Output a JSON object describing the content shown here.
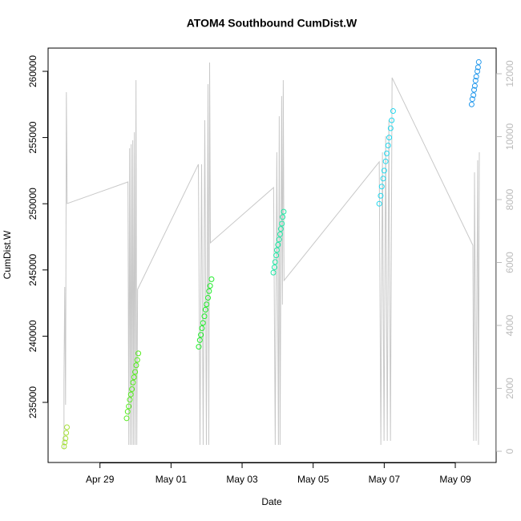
{
  "chart_data": {
    "type": "scatter",
    "title": "ATOM4 Southbound CumDist.W",
    "xlabel": "Date",
    "ylabel": "CumDist.W",
    "xlim": [
      0.54,
      13.15
    ],
    "xticks": [
      {
        "value": 2,
        "label": "Apr 29"
      },
      {
        "value": 4,
        "label": "May 01"
      },
      {
        "value": 6,
        "label": "May 03"
      },
      {
        "value": 8,
        "label": "May 05"
      },
      {
        "value": 10,
        "label": "May 07"
      },
      {
        "value": 12,
        "label": "May 09"
      }
    ],
    "ylim": [
      230460,
      261755
    ],
    "yticks": [
      235000,
      240000,
      245000,
      250000,
      255000,
      260000
    ],
    "y2lim": [
      -357,
      12815
    ],
    "y2ticks": [
      0,
      2000,
      4000,
      6000,
      8000,
      10000,
      12000
    ],
    "series": [
      {
        "type": "line",
        "axis": "y2",
        "color": "#c8c8c8",
        "x": [
          0.987,
          0.987,
          1.009,
          1.032,
          1.054,
          1.077,
          2.788,
          2.811,
          2.833,
          2.856,
          2.878,
          2.901,
          2.923,
          2.946,
          2.968,
          2.991,
          3.014,
          3.036,
          3.059,
          4.77,
          4.815,
          4.86,
          4.905,
          4.95,
          4.995,
          5.041,
          5.063,
          5.086,
          5.108,
          6.887,
          6.932,
          6.977,
          7.023,
          7.045,
          7.068,
          7.113,
          7.135,
          7.158,
          7.18,
          9.86,
          9.905,
          9.95,
          9.995,
          10.041,
          10.086,
          10.131,
          10.176,
          10.221,
          12.495,
          12.518,
          12.541,
          12.586,
          12.631,
          12.653,
          12.676
        ],
        "values": [
          76,
          2242,
          5223,
          1478,
          11415,
          7873,
          8561,
          204,
          9631,
          204,
          9758,
          204,
          9886,
          204,
          10141,
          204,
          11797,
          204,
          5147,
          9122,
          204,
          9122,
          204,
          10523,
          204,
          11670,
          204,
          12357,
          6625,
          8383,
          204,
          9504,
          204,
          10651,
          204,
          11288,
          4663,
          11797,
          5427,
          9198,
          204,
          9504,
          331,
          10014,
          331,
          10523,
          331,
          11874,
          6548,
          331,
          8867,
          331,
          9250,
          204,
          9504
        ]
      },
      {
        "type": "scatter",
        "color": "#a6e03a",
        "x": [
          0.99,
          1.01,
          1.03,
          1.05,
          1.07
        ],
        "values": [
          231672,
          231975,
          232277,
          232700,
          233124
        ]
      },
      {
        "type": "scatter",
        "color": "#55ec1e",
        "x": [
          2.75,
          2.78,
          2.81,
          2.84,
          2.87,
          2.9,
          2.93,
          2.96,
          2.99,
          3.02,
          3.05,
          3.08
        ],
        "values": [
          233800,
          234300,
          234700,
          235200,
          235600,
          236000,
          236500,
          236900,
          237300,
          237800,
          238200,
          238700
        ]
      },
      {
        "type": "scatter",
        "color": "#22ec2c",
        "x": [
          4.78,
          4.81,
          4.84,
          4.87,
          4.9,
          4.94,
          4.97,
          5.0,
          5.04,
          5.07,
          5.1,
          5.14
        ],
        "values": [
          239200,
          239700,
          240100,
          240600,
          241000,
          241500,
          242000,
          242400,
          242900,
          243400,
          243800,
          244300
        ]
      },
      {
        "type": "scatter",
        "color": "#22e8a6",
        "x": [
          6.88,
          6.91,
          6.93,
          6.96,
          6.98,
          7.01,
          7.04,
          7.07,
          7.09,
          7.12,
          7.14,
          7.17
        ],
        "values": [
          244800,
          245200,
          245600,
          246100,
          246500,
          246900,
          247300,
          247700,
          248100,
          248500,
          249000,
          249400
        ]
      },
      {
        "type": "scatter",
        "color": "#22d8ee",
        "x": [
          9.86,
          9.9,
          9.93,
          9.97,
          10.0,
          10.04,
          10.07,
          10.11,
          10.14,
          10.18,
          10.21,
          10.25
        ],
        "values": [
          250000,
          250600,
          251300,
          251900,
          252500,
          253200,
          253800,
          254400,
          255000,
          255700,
          256300,
          257000
        ]
      },
      {
        "type": "scatter",
        "color": "#2298ec",
        "x": [
          12.46,
          12.48,
          12.51,
          12.53,
          12.55,
          12.57,
          12.59,
          12.62,
          12.64,
          12.66
        ],
        "values": [
          257500,
          257900,
          258200,
          258600,
          258900,
          259300,
          259600,
          260000,
          260300,
          260700
        ]
      }
    ]
  }
}
